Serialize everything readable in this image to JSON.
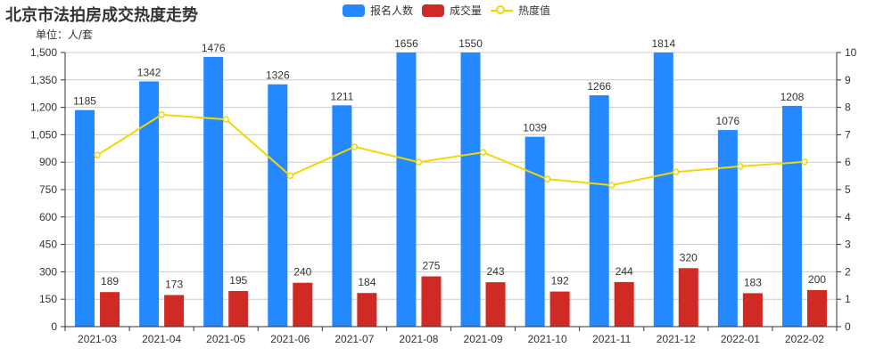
{
  "title": "北京市法拍房成交热度走势",
  "unit_label": "单位：人/套",
  "legend": [
    {
      "label": "报名人数",
      "color": "#2488ff",
      "type": "bar"
    },
    {
      "label": "成交量",
      "color": "#d02a24",
      "type": "bar"
    },
    {
      "label": "热度值",
      "color": "#f2d700",
      "type": "line"
    }
  ],
  "chart_data": {
    "type": "bar",
    "title": "北京市法拍房成交热度走势",
    "subtitle": "单位：人/套",
    "categories": [
      "2021-03",
      "2021-04",
      "2021-05",
      "2021-06",
      "2021-07",
      "2021-08",
      "2021-09",
      "2021-10",
      "2021-11",
      "2021-12",
      "2022-01",
      "2022-02"
    ],
    "series": [
      {
        "name": "报名人数",
        "type": "bar",
        "axis": "left",
        "color": "#2488ff",
        "values": [
          1185,
          1342,
          1476,
          1326,
          1211,
          1656,
          1550,
          1039,
          1266,
          1814,
          1076,
          1208
        ]
      },
      {
        "name": "成交量",
        "type": "bar",
        "axis": "left",
        "color": "#d02a24",
        "values": [
          189,
          173,
          195,
          240,
          184,
          275,
          243,
          192,
          244,
          320,
          183,
          200
        ]
      },
      {
        "name": "热度值",
        "type": "line",
        "axis": "right",
        "color": "#f2d700",
        "values": [
          6.26,
          7.73,
          7.56,
          5.51,
          6.56,
          6.0,
          6.36,
          5.38,
          5.16,
          5.64,
          5.85,
          6.01
        ]
      }
    ],
    "left_axis": {
      "min": 0,
      "max": 1500,
      "ticks": [
        0,
        150,
        300,
        450,
        600,
        750,
        900,
        1050,
        1200,
        1350,
        1500
      ],
      "tick_labels": [
        "0",
        "150",
        "300",
        "450",
        "600",
        "750",
        "900",
        "1,050",
        "1,200",
        "1,350",
        "1,500"
      ]
    },
    "right_axis": {
      "min": 0,
      "max": 10,
      "ticks": [
        0,
        1,
        2,
        3,
        4,
        5,
        6,
        7,
        8,
        9,
        10
      ]
    },
    "xlabel": "",
    "ylabel": "",
    "grid": true,
    "legend_position": "top-center"
  }
}
